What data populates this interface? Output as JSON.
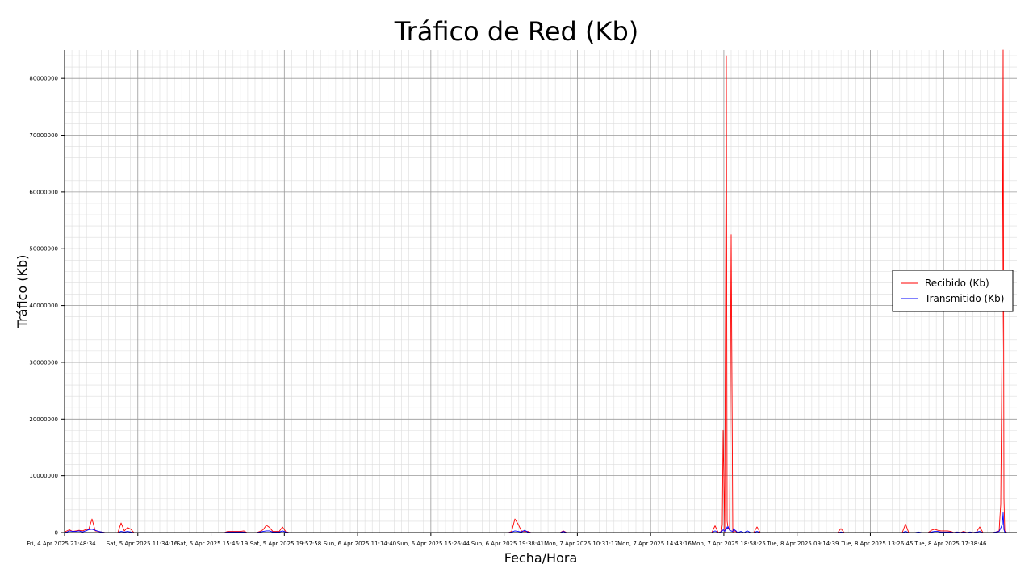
{
  "chart_data": {
    "type": "line",
    "title": "Tráfico de Red (Kb)",
    "xlabel": "Fecha/Hora",
    "ylabel": "Tráfico (Kb)",
    "grid": true,
    "legend_position": "right",
    "ylim": [
      0,
      85000000
    ],
    "yticks": [
      0,
      10000000,
      20000000,
      30000000,
      40000000,
      50000000,
      60000000,
      70000000,
      80000000
    ],
    "ytick_labels": [
      "0",
      "10000000",
      "20000000",
      "30000000",
      "40000000",
      "50000000",
      "60000000",
      "70000000",
      "80000000"
    ],
    "xlim": [
      "Fri, 4 Apr 2025 17:48:00",
      "Tue, 8 Apr 2025 21:40:00"
    ],
    "xtick_labels": [
      "Fri, 4 Apr 2025 21:48:34",
      "Sat, 5 Apr 2025 11:34:16",
      "Sat, 5 Apr 2025 15:46:19",
      "Sat, 5 Apr 2025 19:57:58",
      "Sun, 6 Apr 2025 11:14:40",
      "Sun, 6 Apr 2025 15:26:44",
      "Sun, 6 Apr 2025 19:38:41",
      "Mon, 7 Apr 2025 10:31:17",
      "Mon, 7 Apr 2025 14:43:16",
      "Mon, 7 Apr 2025 18:58:25",
      "Tue, 8 Apr 2025 09:14:39",
      "Tue, 8 Apr 2025 13:26:45",
      "Tue, 8 Apr 2025 17:38:46"
    ],
    "x_index": [
      0,
      3,
      6,
      10,
      14,
      18,
      22,
      26,
      30,
      34,
      38,
      42,
      46,
      50,
      54,
      58,
      62,
      66,
      70,
      74,
      78,
      82,
      86,
      90,
      94,
      98,
      102,
      106,
      110,
      114,
      118,
      122,
      126,
      130,
      134,
      138,
      142,
      146,
      150,
      154,
      158,
      162,
      166,
      170,
      174,
      178,
      182,
      186,
      190,
      194,
      198,
      202,
      206,
      210,
      214,
      218,
      222,
      226,
      230,
      234,
      238,
      242,
      246,
      250,
      254,
      258,
      262,
      266,
      270,
      274,
      278,
      282,
      286,
      290,
      294,
      298,
      302,
      306,
      310,
      314,
      318,
      322,
      326,
      330,
      334,
      338,
      342,
      346,
      350,
      354,
      358,
      362,
      366,
      370,
      374,
      378,
      382,
      386,
      390,
      394,
      398,
      402,
      406,
      410,
      414,
      418,
      422,
      426,
      430,
      434,
      438,
      442,
      446,
      450,
      454,
      458,
      462,
      466,
      470,
      474,
      478,
      482,
      486,
      490,
      494,
      498,
      502,
      506,
      510,
      514,
      518,
      522,
      526,
      530,
      534,
      538,
      542,
      546,
      550,
      554,
      558,
      562,
      566,
      570,
      574,
      578,
      582,
      586,
      590,
      594,
      598,
      602,
      606,
      610,
      614,
      618,
      622,
      626,
      630,
      634,
      638,
      642,
      646,
      650,
      654,
      658,
      662,
      666,
      670,
      674,
      678,
      682,
      686,
      690,
      694,
      698,
      702,
      706,
      710,
      714,
      718,
      722,
      726,
      730,
      734,
      738,
      742,
      746,
      750,
      754,
      758,
      762,
      766,
      770,
      774,
      778,
      782,
      786,
      790,
      794,
      798,
      802,
      806,
      810,
      814,
      815,
      816,
      818,
      820,
      821,
      822,
      824,
      826,
      828,
      829,
      830,
      832,
      834,
      838,
      842,
      846,
      850,
      854,
      858,
      862,
      866,
      870,
      874,
      878,
      882,
      886,
      890,
      894,
      898,
      902,
      906,
      910,
      914,
      918,
      922,
      926,
      930,
      934,
      938,
      942,
      946,
      950,
      954,
      958,
      962,
      966,
      970,
      974,
      978,
      982,
      986,
      990,
      994,
      998,
      1002,
      1006,
      1010,
      1014,
      1018,
      1022,
      1026,
      1030,
      1034,
      1038,
      1042,
      1046,
      1050,
      1054,
      1058,
      1062,
      1066,
      1070,
      1074,
      1078,
      1082,
      1086,
      1090,
      1094,
      1098,
      1102,
      1106,
      1110,
      1114,
      1118,
      1122,
      1126,
      1130,
      1134,
      1138,
      1142,
      1146,
      1150,
      1154,
      1158,
      1160,
      1162,
      1163,
      1164,
      1165,
      1166,
      1168,
      1172,
      1176,
      1180
    ],
    "series": [
      {
        "name": "Recibido (Kb)",
        "color": "#ff0000",
        "values": [
          100000,
          300000,
          500000,
          200000,
          300000,
          400000,
          300000,
          500000,
          600000,
          2400000,
          300000,
          200000,
          100000,
          0,
          0,
          0,
          0,
          0,
          1700000,
          300000,
          900000,
          600000,
          0,
          0,
          0,
          0,
          0,
          0,
          0,
          0,
          0,
          0,
          0,
          0,
          0,
          0,
          0,
          0,
          0,
          0,
          0,
          0,
          0,
          0,
          0,
          0,
          0,
          0,
          0,
          0,
          0,
          200000,
          200000,
          200000,
          200000,
          200000,
          300000,
          0,
          0,
          0,
          0,
          200000,
          500000,
          1300000,
          900000,
          200000,
          200000,
          200000,
          1000000,
          200000,
          0,
          0,
          0,
          0,
          0,
          0,
          0,
          0,
          0,
          0,
          0,
          0,
          0,
          0,
          0,
          0,
          0,
          0,
          0,
          0,
          0,
          0,
          0,
          0,
          0,
          0,
          0,
          0,
          0,
          0,
          0,
          0,
          0,
          0,
          0,
          0,
          0,
          0,
          0,
          0,
          0,
          0,
          0,
          0,
          0,
          0,
          0,
          0,
          0,
          0,
          0,
          0,
          0,
          0,
          0,
          0,
          0,
          0,
          0,
          0,
          0,
          0,
          0,
          0,
          0,
          0,
          0,
          0,
          0,
          200000,
          2400000,
          1500000,
          300000,
          200000,
          200000,
          0,
          0,
          0,
          0,
          0,
          0,
          0,
          0,
          0,
          0,
          300000,
          0,
          0,
          0,
          0,
          0,
          0,
          0,
          0,
          0,
          0,
          0,
          0,
          0,
          0,
          0,
          0,
          0,
          0,
          0,
          0,
          0,
          0,
          0,
          0,
          0,
          0,
          0,
          0,
          0,
          0,
          0,
          0,
          0,
          0,
          0,
          0,
          0,
          0,
          0,
          0,
          0,
          0,
          0,
          0,
          0,
          0,
          1200000,
          0,
          200000,
          1400000,
          18000000,
          0,
          84000000,
          2000000,
          800000,
          500000,
          52500000,
          0,
          600000,
          300000,
          200000,
          0,
          0,
          0,
          0,
          0,
          0,
          1000000,
          0,
          0,
          0,
          0,
          0,
          0,
          0,
          0,
          0,
          0,
          0,
          0,
          0,
          0,
          0,
          0,
          0,
          0,
          0,
          0,
          0,
          0,
          0,
          0,
          0,
          700000,
          0,
          0,
          0,
          0,
          0,
          0,
          0,
          0,
          0,
          0,
          0,
          0,
          0,
          0,
          0,
          0,
          0,
          0,
          0,
          1500000,
          0,
          0,
          0,
          0,
          0,
          0,
          0,
          400000,
          600000,
          400000,
          300000,
          300000,
          300000,
          200000,
          0,
          100000,
          0,
          200000,
          0,
          100000,
          0,
          100000,
          1000000,
          0,
          0,
          0,
          0,
          100000,
          300000,
          5000000,
          40000000,
          85000000,
          6000000,
          300000,
          100000,
          0,
          0
        ]
      },
      {
        "name": "Transmitido (Kb)",
        "color": "#0000ff",
        "values": [
          50000,
          100000,
          300000,
          200000,
          200000,
          300000,
          100000,
          300000,
          500000,
          600000,
          400000,
          200000,
          100000,
          0,
          0,
          0,
          0,
          0,
          200000,
          100000,
          200000,
          100000,
          0,
          0,
          0,
          0,
          0,
          0,
          0,
          0,
          0,
          0,
          0,
          0,
          0,
          0,
          0,
          0,
          0,
          0,
          0,
          0,
          0,
          0,
          0,
          0,
          0,
          0,
          0,
          0,
          0,
          100000,
          100000,
          100000,
          100000,
          100000,
          100000,
          0,
          0,
          0,
          0,
          100000,
          200000,
          300000,
          300000,
          100000,
          100000,
          100000,
          300000,
          100000,
          0,
          0,
          0,
          0,
          0,
          0,
          0,
          0,
          0,
          0,
          0,
          0,
          0,
          0,
          0,
          0,
          0,
          0,
          0,
          0,
          0,
          0,
          0,
          0,
          0,
          0,
          0,
          0,
          0,
          0,
          0,
          0,
          0,
          0,
          0,
          0,
          0,
          0,
          0,
          0,
          0,
          0,
          0,
          0,
          0,
          0,
          0,
          0,
          0,
          0,
          0,
          0,
          0,
          0,
          0,
          0,
          0,
          0,
          0,
          0,
          0,
          0,
          0,
          0,
          0,
          0,
          0,
          0,
          0,
          100000,
          300000,
          200000,
          100000,
          400000,
          100000,
          0,
          0,
          0,
          0,
          0,
          0,
          0,
          0,
          0,
          0,
          200000,
          0,
          0,
          0,
          0,
          0,
          0,
          0,
          0,
          0,
          0,
          0,
          0,
          0,
          0,
          0,
          0,
          0,
          0,
          0,
          0,
          0,
          0,
          0,
          0,
          0,
          0,
          0,
          0,
          0,
          0,
          0,
          0,
          0,
          0,
          0,
          0,
          0,
          0,
          0,
          0,
          0,
          0,
          0,
          0,
          0,
          0,
          300000,
          0,
          100000,
          300000,
          500000,
          200000,
          1000000,
          600000,
          1100000,
          400000,
          300000,
          200000,
          700000,
          500000,
          300000,
          0,
          200000,
          0,
          300000,
          0,
          0,
          200000,
          0,
          0,
          0,
          0,
          0,
          0,
          0,
          0,
          0,
          0,
          0,
          0,
          0,
          0,
          0,
          0,
          0,
          0,
          0,
          0,
          0,
          0,
          0,
          0,
          0,
          100000,
          0,
          0,
          0,
          0,
          0,
          0,
          0,
          0,
          0,
          0,
          0,
          0,
          0,
          0,
          0,
          0,
          0,
          0,
          0,
          200000,
          0,
          0,
          0,
          100000,
          0,
          0,
          0,
          100000,
          200000,
          200000,
          100000,
          100000,
          100000,
          100000,
          0,
          100000,
          0,
          100000,
          0,
          100000,
          0,
          100000,
          200000,
          0,
          0,
          0,
          0,
          100000,
          200000,
          800000,
          1500000,
          3500000,
          500000,
          100000,
          100000,
          0,
          0
        ]
      }
    ]
  }
}
